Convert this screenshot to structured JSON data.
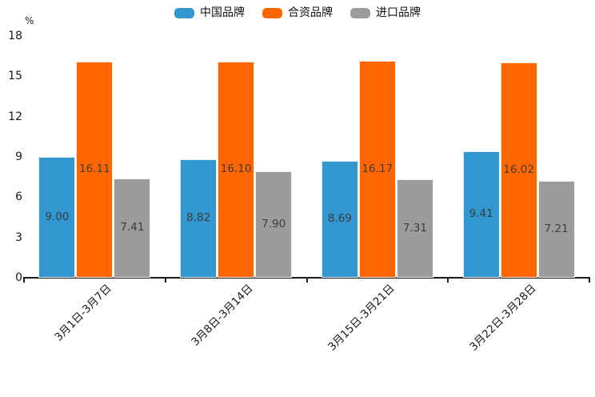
{
  "chart_data": {
    "type": "bar",
    "title": "",
    "xlabel": "",
    "ylabel": "%",
    "ylim": [
      0,
      18
    ],
    "yticks": [
      0,
      3,
      6,
      9,
      12,
      15,
      18
    ],
    "grid": false,
    "legend_position": "top-center",
    "value_labels_visible": true,
    "categories": [
      "3月1日-3月7日",
      "3月8日-3月14日",
      "3月15日-3月21日",
      "3月22日-3月28日"
    ],
    "series": [
      {
        "name": "中国品牌",
        "color": "#3296d1",
        "values": [
          9.0,
          8.82,
          8.69,
          9.41
        ],
        "labels": [
          "9.00",
          "8.82",
          "8.69",
          "9.41"
        ]
      },
      {
        "name": "合资品牌",
        "color": "#ff6600",
        "values": [
          16.11,
          16.1,
          16.17,
          16.02
        ],
        "labels": [
          "16.11",
          "16.10",
          "16.17",
          "16.02"
        ]
      },
      {
        "name": "进口品牌",
        "color": "#9c9c9c",
        "values": [
          7.41,
          7.9,
          7.31,
          7.21
        ],
        "labels": [
          "7.41",
          "7.90",
          "7.31",
          "7.21"
        ]
      }
    ],
    "colors": {
      "axis": "#1a1a1a",
      "value_label_text": "#3d3d3d",
      "tick_label_text": "#1a1a1a"
    }
  }
}
